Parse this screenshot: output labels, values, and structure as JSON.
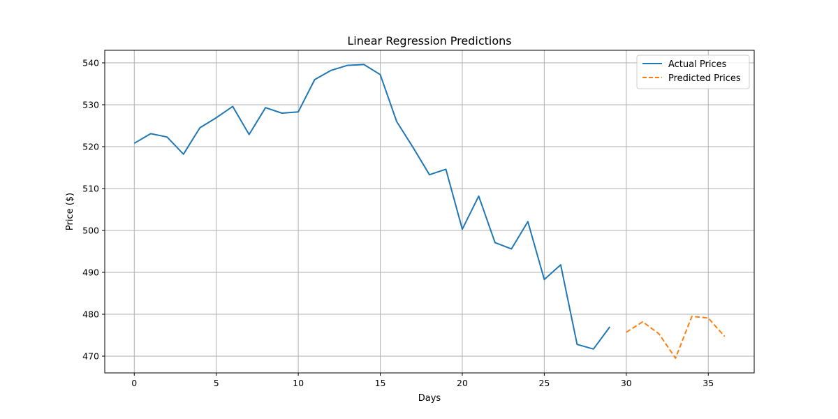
{
  "chart_data": {
    "type": "line",
    "title": "Linear Regression Predictions",
    "xlabel": "Days",
    "ylabel": "Price ($)",
    "xlim": [
      -1.8,
      37.8
    ],
    "ylim": [
      466.0,
      543.0
    ],
    "xticks": [
      0,
      5,
      10,
      15,
      20,
      25,
      30,
      35
    ],
    "yticks": [
      470,
      480,
      490,
      500,
      510,
      520,
      530,
      540
    ],
    "grid": true,
    "legend_position": "top-right",
    "series": [
      {
        "name": "Actual Prices",
        "color": "#1f77b4",
        "style": "solid",
        "x": [
          0,
          1,
          2,
          3,
          4,
          5,
          6,
          7,
          8,
          9,
          10,
          11,
          12,
          13,
          14,
          15,
          16,
          17,
          18,
          19,
          20,
          21,
          22,
          23,
          24,
          25,
          26,
          27,
          28,
          29
        ],
        "y": [
          520.8,
          523.1,
          522.3,
          518.2,
          524.5,
          526.9,
          529.6,
          522.9,
          529.3,
          528.0,
          528.3,
          536.0,
          538.2,
          539.4,
          539.6,
          537.2,
          526.0,
          519.8,
          513.3,
          514.6,
          500.3,
          508.2,
          497.1,
          495.6,
          502.1,
          488.3,
          491.8,
          472.8,
          471.7,
          477.0
        ]
      },
      {
        "name": "Predicted Prices",
        "color": "#ff7f0e",
        "style": "dashed",
        "x": [
          30,
          31,
          32,
          33,
          34,
          35,
          36
        ],
        "y": [
          475.7,
          478.2,
          475.3,
          469.5,
          479.5,
          479.1,
          474.7
        ]
      }
    ]
  }
}
